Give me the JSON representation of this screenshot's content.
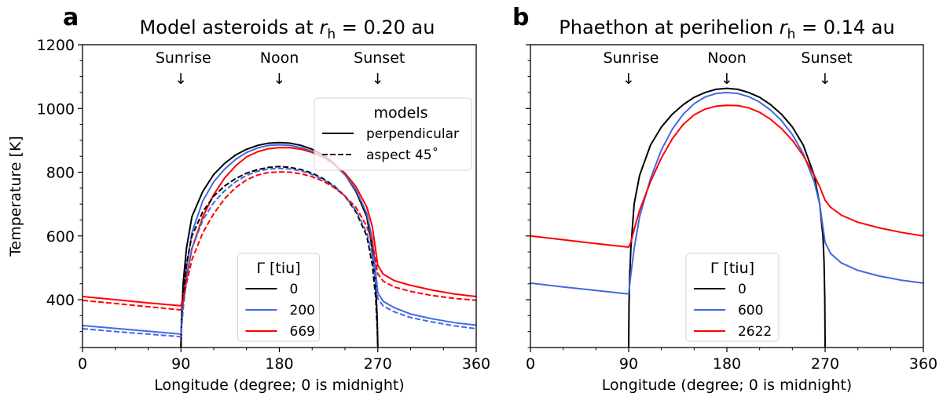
{
  "chart_data": [
    {
      "type": "line",
      "panel_letter": "a",
      "title_prefix": "Model asteroids at ",
      "title_var": "r",
      "title_sub": "h",
      "title_suffix": " = 0.20 au",
      "xlabel": "Longitude (degree; 0 is midnight)",
      "ylabel": "Temperature [K]",
      "xlim": [
        0,
        360
      ],
      "ylim": [
        250,
        1200
      ],
      "xticks": [
        0,
        90,
        180,
        270,
        360
      ],
      "xticklabels": [
        "0",
        "90",
        "180",
        "270",
        "360"
      ],
      "xminor_step": 30,
      "yticks": [
        400,
        600,
        800,
        1000,
        1200
      ],
      "yticklabels": [
        "400",
        "600",
        "800",
        "1000",
        "1200"
      ],
      "yminor_step": 50,
      "show_yticklabels": true,
      "annotations": [
        {
          "text": "Sunrise",
          "arrow": "↓",
          "x": 90
        },
        {
          "text": "Noon",
          "arrow": "↓",
          "x": 180
        },
        {
          "text": "Sunset",
          "arrow": "↓",
          "x": 270
        }
      ],
      "legends": [
        {
          "title": "models",
          "placement": "upper-right",
          "entries": [
            {
              "label": "perpendicular",
              "style": "solid",
              "color": "#000000"
            },
            {
              "label": "aspect 45˚",
              "style": "dashed",
              "color": "#000000"
            }
          ]
        },
        {
          "title": "Γ [tiu]",
          "placement": "lower-center",
          "entries": [
            {
              "label": "0",
              "style": "solid",
              "color": "#000000"
            },
            {
              "label": "200",
              "style": "solid",
              "color": "#4169e1"
            },
            {
              "label": "669",
              "style": "solid",
              "color": "#ff0000"
            }
          ]
        }
      ],
      "series": [
        {
          "name": "Γ=0 perpendicular",
          "color": "#000000",
          "style": "solid",
          "x": [
            90,
            90.5,
            92,
            95,
            100,
            110,
            120,
            130,
            140,
            150,
            160,
            170,
            180,
            190,
            200,
            210,
            220,
            230,
            240,
            250,
            260,
            265,
            268,
            269.5,
            270
          ],
          "y": [
            250,
            340,
            450,
            560,
            660,
            740,
            793,
            828,
            854,
            872,
            884,
            891,
            893,
            891,
            884,
            872,
            854,
            828,
            793,
            740,
            660,
            560,
            450,
            340,
            250
          ]
        },
        {
          "name": "Γ=200 perpendicular",
          "color": "#4169e1",
          "style": "solid",
          "x": [
            0,
            30,
            60,
            90,
            92,
            95,
            100,
            110,
            120,
            130,
            140,
            150,
            160,
            170,
            180,
            190,
            200,
            210,
            220,
            230,
            240,
            250,
            260,
            265,
            270,
            275,
            285,
            300,
            320,
            340,
            360
          ],
          "y": [
            319,
            310,
            301,
            292,
            400,
            500,
            610,
            710,
            770,
            810,
            840,
            862,
            876,
            884,
            886,
            884,
            877,
            865,
            848,
            824,
            792,
            745,
            670,
            590,
            422,
            395,
            375,
            355,
            340,
            328,
            320
          ]
        },
        {
          "name": "Γ=669 perpendicular",
          "color": "#ff0000",
          "style": "solid",
          "x": [
            0,
            30,
            60,
            90,
            92,
            95,
            100,
            110,
            120,
            130,
            140,
            150,
            160,
            170,
            180,
            190,
            200,
            210,
            220,
            230,
            240,
            250,
            260,
            265,
            270,
            275,
            285,
            300,
            320,
            340,
            360
          ],
          "y": [
            410,
            400,
            390,
            381,
            410,
            470,
            560,
            660,
            730,
            782,
            820,
            848,
            864,
            874,
            877,
            877,
            872,
            862,
            847,
            826,
            797,
            755,
            690,
            630,
            508,
            480,
            460,
            445,
            430,
            418,
            410
          ]
        },
        {
          "name": "Γ=0 aspect 45",
          "color": "#000000",
          "style": "dashed",
          "x": [
            90,
            90.5,
            92,
            95,
            100,
            110,
            120,
            130,
            140,
            150,
            160,
            170,
            180,
            190,
            200,
            210,
            220,
            230,
            240,
            250,
            260,
            265,
            268,
            269.5,
            270
          ],
          "y": [
            250,
            310,
            410,
            510,
            600,
            676,
            725,
            757,
            780,
            797,
            808,
            815,
            818,
            815,
            808,
            797,
            780,
            757,
            725,
            676,
            600,
            510,
            410,
            310,
            250
          ]
        },
        {
          "name": "Γ=200 aspect 45",
          "color": "#4169e1",
          "style": "dashed",
          "x": [
            0,
            30,
            60,
            90,
            92,
            95,
            100,
            110,
            120,
            130,
            140,
            150,
            160,
            170,
            180,
            190,
            200,
            210,
            220,
            230,
            240,
            250,
            260,
            265,
            270,
            275,
            285,
            300,
            320,
            340,
            360
          ],
          "y": [
            309,
            300,
            292,
            284,
            370,
            460,
            560,
            650,
            705,
            742,
            770,
            790,
            803,
            810,
            812,
            810,
            804,
            793,
            777,
            755,
            725,
            680,
            610,
            540,
            404,
            380,
            362,
            344,
            330,
            318,
            309
          ]
        },
        {
          "name": "Γ=669 aspect 45",
          "color": "#ff0000",
          "style": "dashed",
          "x": [
            0,
            30,
            60,
            90,
            92,
            95,
            100,
            110,
            120,
            130,
            140,
            150,
            160,
            170,
            180,
            190,
            200,
            210,
            220,
            230,
            240,
            250,
            260,
            265,
            270,
            275,
            285,
            300,
            320,
            340,
            360
          ],
          "y": [
            398,
            388,
            378,
            368,
            395,
            450,
            525,
            610,
            670,
            717,
            752,
            776,
            791,
            799,
            801,
            800,
            795,
            786,
            772,
            752,
            725,
            690,
            630,
            580,
            481,
            458,
            440,
            426,
            413,
            404,
            398
          ]
        }
      ]
    },
    {
      "type": "line",
      "panel_letter": "b",
      "title_prefix": "Phaethon at perihelion ",
      "title_var": "r",
      "title_sub": "h",
      "title_suffix": " = 0.14 au",
      "xlabel": "Longitude (degree; 0 is midnight)",
      "ylabel": "",
      "xlim": [
        0,
        360
      ],
      "ylim": [
        250,
        1200
      ],
      "xticks": [
        0,
        90,
        180,
        270,
        360
      ],
      "xticklabels": [
        "0",
        "90",
        "180",
        "270",
        "360"
      ],
      "xminor_step": 30,
      "yticks": [
        400,
        600,
        800,
        1000,
        1200
      ],
      "yticklabels": [],
      "yminor_step": 50,
      "show_yticklabels": false,
      "annotations": [
        {
          "text": "Sunrise",
          "arrow": "↓",
          "x": 90
        },
        {
          "text": "Noon",
          "arrow": "↓",
          "x": 180
        },
        {
          "text": "Sunset",
          "arrow": "↓",
          "x": 270
        }
      ],
      "legends": [
        {
          "title": "Γ [tiu]",
          "placement": "lower-center",
          "entries": [
            {
              "label": "0",
              "style": "solid",
              "color": "#000000"
            },
            {
              "label": "600",
              "style": "solid",
              "color": "#4169e1"
            },
            {
              "label": "2622",
              "style": "solid",
              "color": "#ff0000"
            }
          ]
        }
      ],
      "series": [
        {
          "name": "Γ=0",
          "color": "#000000",
          "style": "solid",
          "x": [
            90,
            90.3,
            91,
            92,
            95,
            100,
            110,
            120,
            130,
            140,
            150,
            160,
            170,
            180,
            190,
            200,
            210,
            220,
            230,
            240,
            250,
            260,
            265,
            268,
            269,
            269.7,
            270
          ],
          "y": [
            250,
            380,
            480,
            560,
            700,
            790,
            885,
            942,
            982,
            1012,
            1035,
            1050,
            1060,
            1063,
            1060,
            1050,
            1035,
            1012,
            982,
            942,
            885,
            790,
            700,
            600,
            520,
            400,
            250
          ]
        },
        {
          "name": "Γ=600",
          "color": "#4169e1",
          "style": "solid",
          "x": [
            0,
            30,
            60,
            90,
            92,
            95,
            100,
            110,
            120,
            130,
            140,
            150,
            160,
            170,
            180,
            190,
            200,
            210,
            220,
            230,
            240,
            250,
            260,
            265,
            270,
            275,
            285,
            300,
            320,
            340,
            360
          ],
          "y": [
            452,
            440,
            429,
            418,
            480,
            560,
            660,
            780,
            870,
            935,
            982,
            1015,
            1036,
            1047,
            1050,
            1047,
            1037,
            1020,
            995,
            962,
            918,
            858,
            770,
            700,
            580,
            545,
            515,
            492,
            474,
            461,
            452
          ]
        },
        {
          "name": "Γ=2622",
          "color": "#ff0000",
          "style": "solid",
          "x": [
            0,
            30,
            60,
            90,
            92,
            95,
            100,
            110,
            120,
            130,
            140,
            150,
            160,
            170,
            180,
            190,
            200,
            210,
            220,
            230,
            240,
            250,
            260,
            265,
            270,
            275,
            285,
            300,
            320,
            340,
            360
          ],
          "y": [
            600,
            588,
            576,
            565,
            580,
            620,
            680,
            770,
            845,
            905,
            950,
            980,
            998,
            1007,
            1010,
            1009,
            1002,
            988,
            966,
            937,
            900,
            852,
            790,
            755,
            712,
            690,
            665,
            643,
            625,
            611,
            600
          ]
        }
      ]
    }
  ]
}
